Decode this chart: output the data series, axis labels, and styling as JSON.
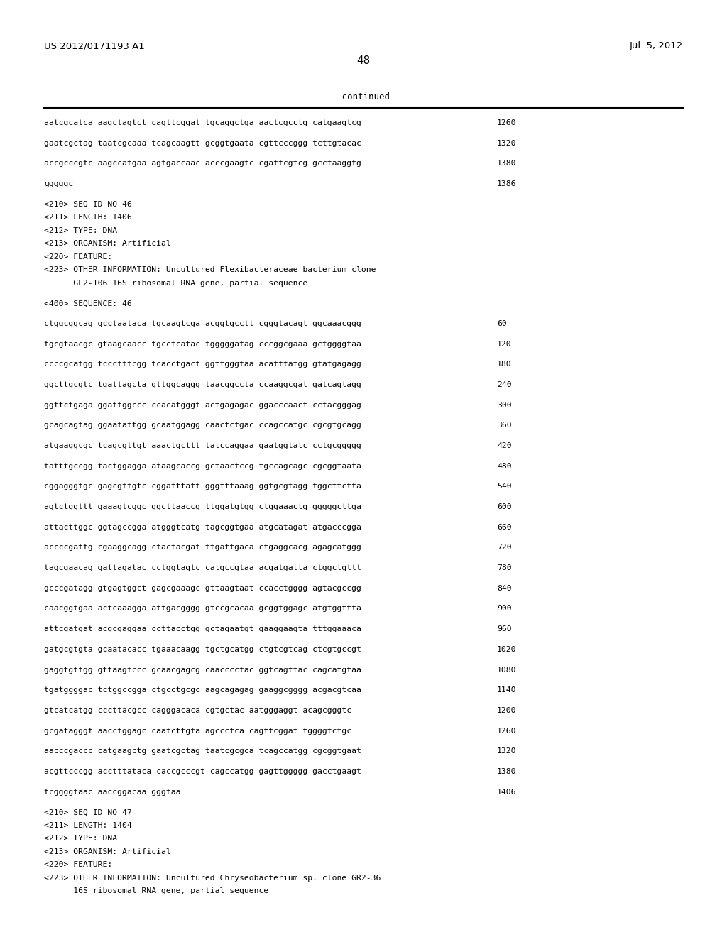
{
  "header_left": "US 2012/0171193 A1",
  "header_right": "Jul. 5, 2012",
  "page_number": "48",
  "continued_label": "-continued",
  "background_color": "#ffffff",
  "text_color": "#000000",
  "lines": [
    {
      "text": "aatcgcatca aagctagtct cagttcggat tgcaggctga aactcgcctg catgaagtcg",
      "num": "1260"
    },
    {
      "text": "",
      "num": ""
    },
    {
      "text": "gaatcgctag taatcgcaaa tcagcaagtt gcggtgaata cgttcccggg tcttgtacac",
      "num": "1320"
    },
    {
      "text": "",
      "num": ""
    },
    {
      "text": "accgcccgtc aagccatgaa agtgaccaac acccgaagtc cgattcgtcg gcctaaggtg",
      "num": "1380"
    },
    {
      "text": "",
      "num": ""
    },
    {
      "text": "gggggc",
      "num": "1386"
    },
    {
      "text": "",
      "num": ""
    },
    {
      "text": "<210> SEQ ID NO 46",
      "num": ""
    },
    {
      "text": "<211> LENGTH: 1406",
      "num": ""
    },
    {
      "text": "<212> TYPE: DNA",
      "num": ""
    },
    {
      "text": "<213> ORGANISM: Artificial",
      "num": ""
    },
    {
      "text": "<220> FEATURE:",
      "num": ""
    },
    {
      "text": "<223> OTHER INFORMATION: Uncultured Flexibacteraceae bacterium clone",
      "num": ""
    },
    {
      "text": "      GL2-106 16S ribosomal RNA gene, partial sequence",
      "num": ""
    },
    {
      "text": "",
      "num": ""
    },
    {
      "text": "<400> SEQUENCE: 46",
      "num": ""
    },
    {
      "text": "",
      "num": ""
    },
    {
      "text": "ctggcggcag gcctaataca tgcaagtcga acggtgcctt cgggtacagt ggcaaacggg",
      "num": "60"
    },
    {
      "text": "",
      "num": ""
    },
    {
      "text": "tgcgtaacgc gtaagcaacc tgcctcatac tgggggatag cccggcgaaa gctggggtaa",
      "num": "120"
    },
    {
      "text": "",
      "num": ""
    },
    {
      "text": "ccccgcatgg tccctttcgg tcacctgact ggttgggtaa acatttatgg gtatgagagg",
      "num": "180"
    },
    {
      "text": "",
      "num": ""
    },
    {
      "text": "ggcttgcgtc tgattagcta gttggcaggg taacggccta ccaaggcgat gatcagtagg",
      "num": "240"
    },
    {
      "text": "",
      "num": ""
    },
    {
      "text": "ggttctgaga ggattggccc ccacatgggt actgagagac ggacccaact cctacgggag",
      "num": "300"
    },
    {
      "text": "",
      "num": ""
    },
    {
      "text": "gcagcagtag ggaatattgg gcaatggagg caactctgac ccagccatgc cgcgtgcagg",
      "num": "360"
    },
    {
      "text": "",
      "num": ""
    },
    {
      "text": "atgaaggcgc tcagcgttgt aaactgcttt tatccaggaa gaatggtatc cctgcggggg",
      "num": "420"
    },
    {
      "text": "",
      "num": ""
    },
    {
      "text": "tatttgccgg tactggagga ataagcaccg gctaactccg tgccagcagc cgcggtaata",
      "num": "480"
    },
    {
      "text": "",
      "num": ""
    },
    {
      "text": "cggagggtgc gagcgttgtc cggatttatt gggtttaaag ggtgcgtagg tggcttctta",
      "num": "540"
    },
    {
      "text": "",
      "num": ""
    },
    {
      "text": "agtctggttt gaaagtcggc ggcttaaccg ttggatgtgg ctggaaactg gggggcttga",
      "num": "600"
    },
    {
      "text": "",
      "num": ""
    },
    {
      "text": "attacttggc ggtagccgga atgggtcatg tagcggtgaa atgcatagat atgacccgga",
      "num": "660"
    },
    {
      "text": "",
      "num": ""
    },
    {
      "text": "accccgattg cgaaggcagg ctactacgat ttgattgaca ctgaggcacg agagcatggg",
      "num": "720"
    },
    {
      "text": "",
      "num": ""
    },
    {
      "text": "tagcgaacag gattagatac cctggtagtc catgccgtaa acgatgatta ctggctgttt",
      "num": "780"
    },
    {
      "text": "",
      "num": ""
    },
    {
      "text": "gcccgatagg gtgagtggct gagcgaaagc gttaagtaat ccacctgggg agtacgccgg",
      "num": "840"
    },
    {
      "text": "",
      "num": ""
    },
    {
      "text": "caacggtgaa actcaaagga attgacgggg gtccgcacaa gcggtggagc atgtggttta",
      "num": "900"
    },
    {
      "text": "",
      "num": ""
    },
    {
      "text": "attcgatgat acgcgaggaa ccttacctgg gctagaatgt gaaggaagta tttggaaaca",
      "num": "960"
    },
    {
      "text": "",
      "num": ""
    },
    {
      "text": "gatgcgtgta gcaatacacc tgaaacaagg tgctgcatgg ctgtcgtcag ctcgtgccgt",
      "num": "1020"
    },
    {
      "text": "",
      "num": ""
    },
    {
      "text": "gaggtgttgg gttaagtccc gcaacgagcg caacccctac ggtcagttac cagcatgtaa",
      "num": "1080"
    },
    {
      "text": "",
      "num": ""
    },
    {
      "text": "tgatggggac tctggccgga ctgcctgcgc aagcagagag gaaggcgggg acgacgtcaa",
      "num": "1140"
    },
    {
      "text": "",
      "num": ""
    },
    {
      "text": "gtcatcatgg cccttacgcc cagggacaca cgtgctac aatgggaggt acagcgggtc",
      "num": "1200"
    },
    {
      "text": "",
      "num": ""
    },
    {
      "text": "gcgatagggt aacctggagc caatcttgta agccctca cagttcggat tggggtctgc",
      "num": "1260"
    },
    {
      "text": "",
      "num": ""
    },
    {
      "text": "aacccgaccc catgaagctg gaatcgctag taatcgcgca tcagccatgg cgcggtgaat",
      "num": "1320"
    },
    {
      "text": "",
      "num": ""
    },
    {
      "text": "acgttcccgg acctttataca caccgcccgt cagccatgg gagttggggg gacctgaagt",
      "num": "1380"
    },
    {
      "text": "",
      "num": ""
    },
    {
      "text": "tcggggtaac aaccggacaa gggtaa",
      "num": "1406"
    },
    {
      "text": "",
      "num": ""
    },
    {
      "text": "<210> SEQ ID NO 47",
      "num": ""
    },
    {
      "text": "<211> LENGTH: 1404",
      "num": ""
    },
    {
      "text": "<212> TYPE: DNA",
      "num": ""
    },
    {
      "text": "<213> ORGANISM: Artificial",
      "num": ""
    },
    {
      "text": "<220> FEATURE:",
      "num": ""
    },
    {
      "text": "<223> OTHER INFORMATION: Uncultured Chryseobacterium sp. clone GR2-36",
      "num": ""
    },
    {
      "text": "      16S ribosomal RNA gene, partial sequence",
      "num": ""
    }
  ]
}
